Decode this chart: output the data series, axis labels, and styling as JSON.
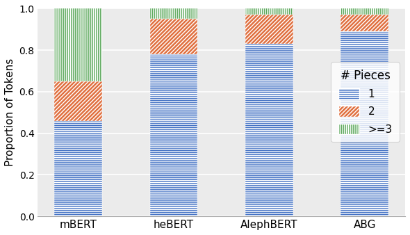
{
  "categories": [
    "mBERT",
    "heBERT",
    "AlephBERT",
    "ABG"
  ],
  "piece1": [
    0.46,
    0.78,
    0.83,
    0.89
  ],
  "piece2": [
    0.19,
    0.17,
    0.14,
    0.08
  ],
  "piece3": [
    0.35,
    0.05,
    0.03,
    0.03
  ],
  "color1": "#4472C4",
  "color2": "#E07040",
  "color3": "#5BA85B",
  "ylabel": "Proportion of Tokens",
  "legend_title": "# Pieces",
  "legend_labels": [
    "1",
    "2",
    ">=3"
  ],
  "ylim": [
    0.0,
    1.0
  ],
  "yticks": [
    0.0,
    0.2,
    0.4,
    0.6,
    0.8,
    1.0
  ],
  "bar_width": 0.5,
  "background_color": "#EBEBEB"
}
